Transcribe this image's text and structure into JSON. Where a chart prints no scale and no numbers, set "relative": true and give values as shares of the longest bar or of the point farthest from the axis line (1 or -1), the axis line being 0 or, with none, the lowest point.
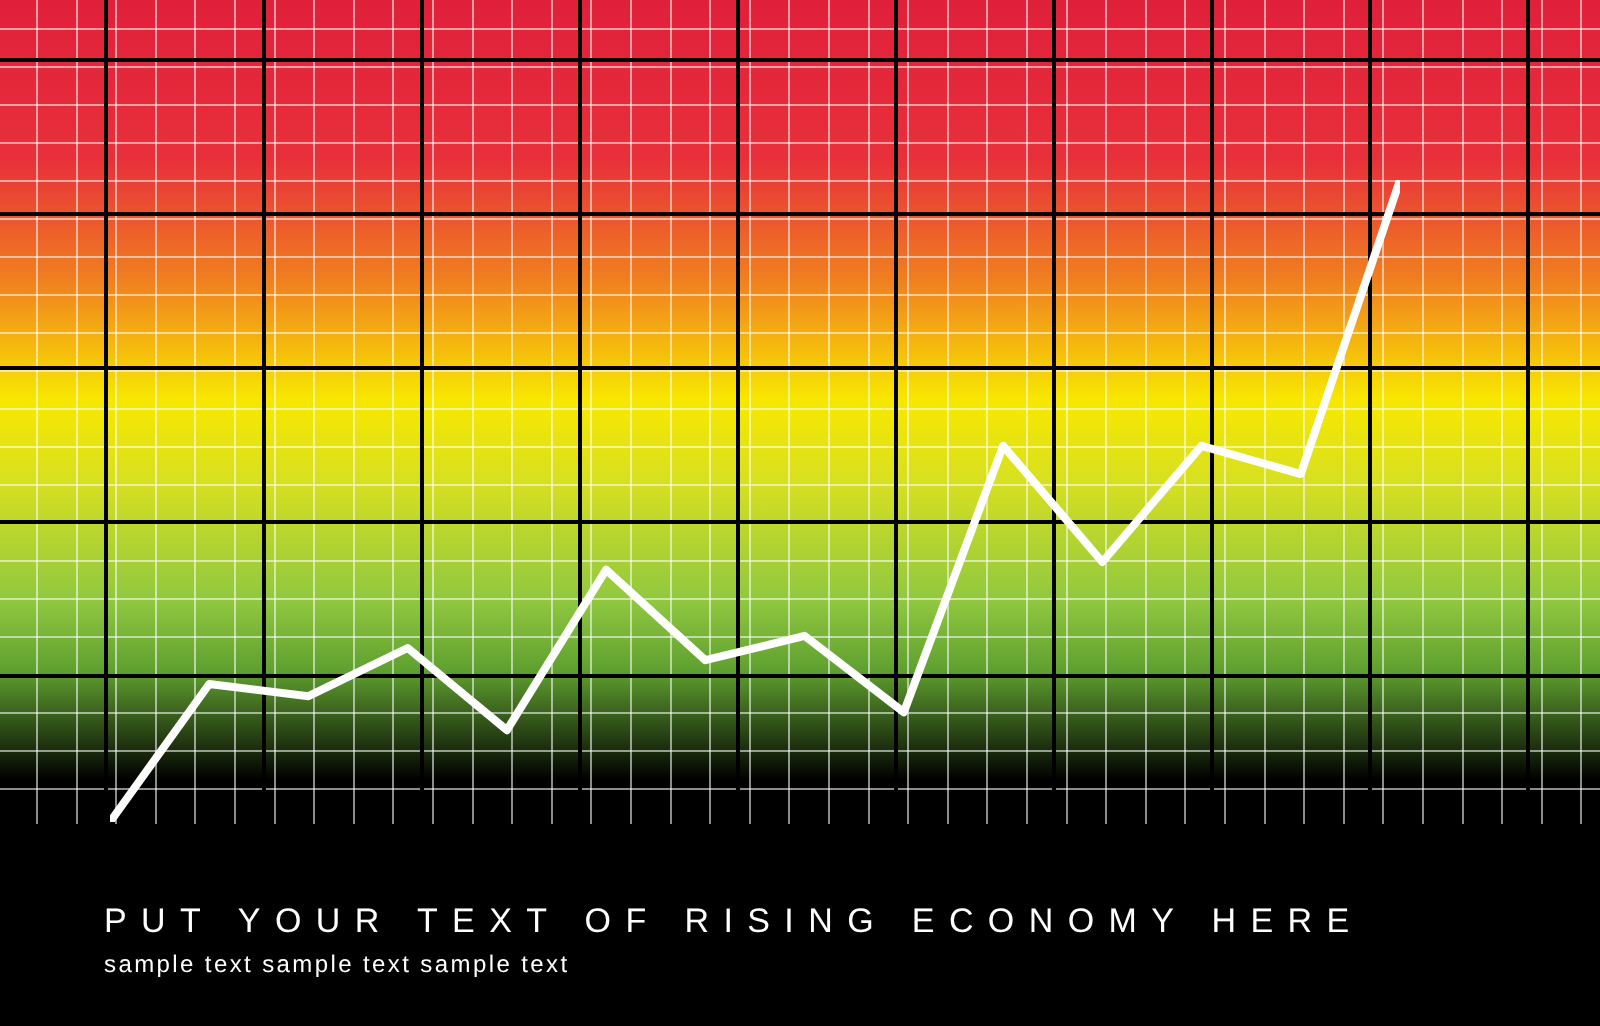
{
  "chart_data": {
    "type": "line",
    "title": "PUT YOUR TEXT OF RISING ECONOMY HERE",
    "subtitle": "sample text sample text sample text",
    "relative": true,
    "categories": [
      null,
      null,
      null,
      null,
      null,
      null,
      null,
      null,
      null,
      null,
      null,
      null,
      null,
      null
    ],
    "series": [
      {
        "color": "#ffffff",
        "values": [
          0,
          0.215,
          0.196,
          0.271,
          0.143,
          0.393,
          0.252,
          0.29,
          0.171,
          0.586,
          0.405,
          0.586,
          0.542,
          1
        ]
      }
    ],
    "marker": "none",
    "line_style": "solid"
  }
}
